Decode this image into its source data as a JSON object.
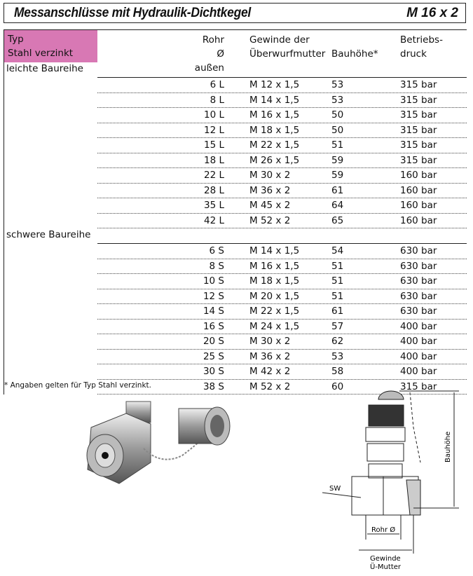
{
  "header": {
    "title": "Messanschlüsse mit Hydraulik-Dichtkegel",
    "size": "M 16 x 2"
  },
  "table": {
    "type_label": "Typ",
    "type_value": "Stahl verzinkt",
    "columns": [
      [
        "Rohr Ø",
        "außen"
      ],
      [
        "Gewinde der",
        "Überwurfmutter"
      ],
      [
        "",
        "Bauhöhe*"
      ],
      [
        "Betriebs-",
        "druck"
      ]
    ],
    "groups": [
      {
        "label": "leichte Baureihe",
        "rows": [
          [
            "6 L",
            "M 12 x 1,5",
            "53",
            "315 bar"
          ],
          [
            "8 L",
            "M 14 x 1,5",
            "53",
            "315 bar"
          ],
          [
            "10 L",
            "M 16 x 1,5",
            "50",
            "315 bar"
          ],
          [
            "12 L",
            "M 18 x 1,5",
            "50",
            "315 bar"
          ],
          [
            "15 L",
            "M 22 x 1,5",
            "51",
            "315 bar"
          ],
          [
            "18 L",
            "M 26 x 1,5",
            "59",
            "315 bar"
          ],
          [
            "22 L",
            "M 30 x 2",
            "59",
            "160 bar"
          ],
          [
            "28 L",
            "M 36 x 2",
            "61",
            "160 bar"
          ],
          [
            "35 L",
            "M 45 x 2",
            "64",
            "160 bar"
          ],
          [
            "42 L",
            "M 52 x 2",
            "65",
            "160 bar"
          ]
        ]
      },
      {
        "label": "schwere Baureihe",
        "rows": [
          [
            "6 S",
            "M 14 x 1,5",
            "54",
            "630 bar"
          ],
          [
            "8 S",
            "M 16 x 1,5",
            "51",
            "630 bar"
          ],
          [
            "10 S",
            "M 18 x 1,5",
            "51",
            "630 bar"
          ],
          [
            "12 S",
            "M 20 x 1,5",
            "51",
            "630 bar"
          ],
          [
            "14 S",
            "M 22 x 1,5",
            "61",
            "630 bar"
          ],
          [
            "16 S",
            "M 24 x 1,5",
            "57",
            "400 bar"
          ],
          [
            "20 S",
            "M 30 x 2",
            "62",
            "400 bar"
          ],
          [
            "25 S",
            "M 36 x 2",
            "53",
            "400 bar"
          ],
          [
            "30 S",
            "M 42 x 2",
            "58",
            "400 bar"
          ],
          [
            "38 S",
            "M 52 x 2",
            "60",
            "315 bar"
          ]
        ]
      }
    ],
    "accent": "#d878b4"
  },
  "footnote": "* Angaben gelten für Typ Stahl verzinkt.",
  "drawing": {
    "sw": "SW",
    "bauhoehe": "Bauhöhe",
    "rohr": "Rohr Ø",
    "gewinde1": "Gewinde",
    "gewinde2": "Ü-Mutter"
  }
}
